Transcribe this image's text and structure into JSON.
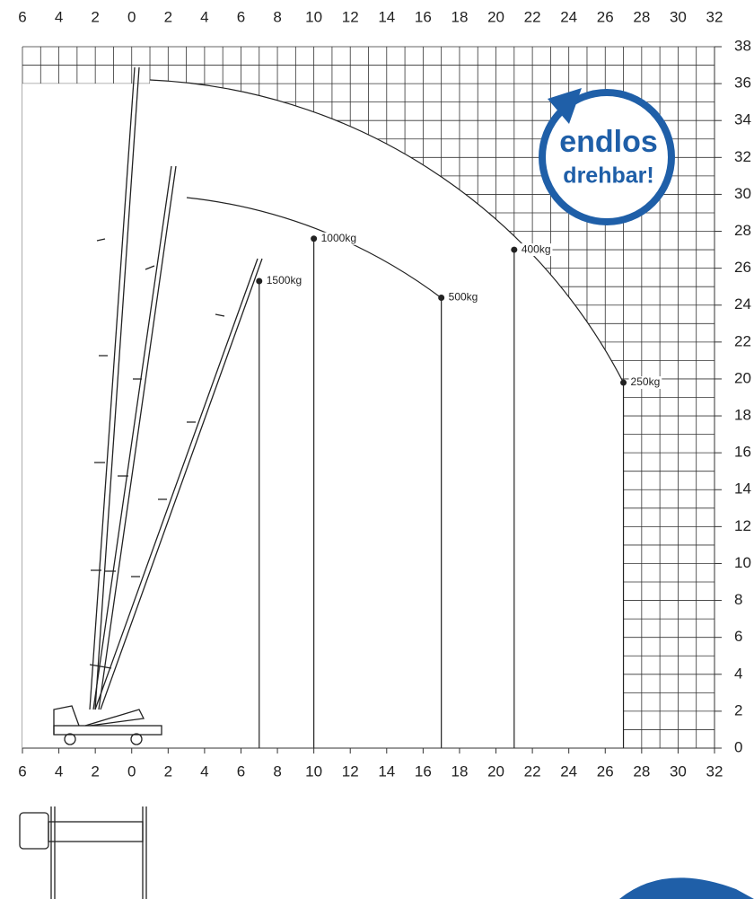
{
  "chart_data": {
    "type": "scatter",
    "x": [
      7,
      10,
      17,
      21,
      27
    ],
    "values": [
      25.3,
      27.6,
      24.4,
      27.0,
      19.8
    ],
    "point_labels": [
      "1500kg",
      "1000kg",
      "500kg",
      "400kg",
      "250kg"
    ],
    "color": "#222222",
    "xlim": [
      -6,
      32
    ],
    "ylim": [
      0,
      38
    ],
    "xticks": [
      {
        "value": -6,
        "label": "6"
      },
      {
        "value": -4,
        "label": "4"
      },
      {
        "value": -2,
        "label": "2"
      },
      0,
      2,
      4,
      6,
      8,
      10,
      12,
      14,
      16,
      18,
      20,
      22,
      24,
      26,
      28,
      30,
      32
    ],
    "yticks": [
      0,
      2,
      4,
      6,
      8,
      10,
      12,
      14,
      16,
      18,
      20,
      22,
      24,
      26,
      28,
      30,
      32,
      34,
      36,
      38
    ],
    "grid": true,
    "annotations": [
      "endlos",
      "drehbar!"
    ],
    "annotation_color": "#1f5fa8"
  }
}
